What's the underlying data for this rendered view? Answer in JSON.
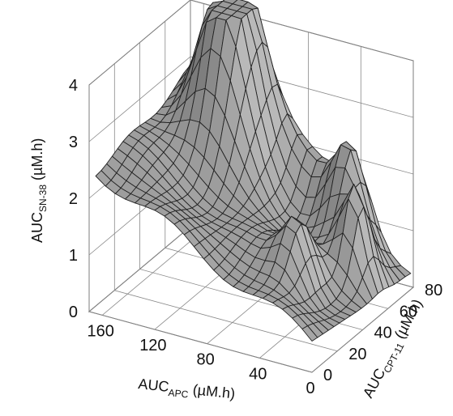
{
  "chart_data": {
    "type": "surface",
    "x_axis": {
      "name": "AUC",
      "subscript": "APC",
      "unit": "(µM.h)",
      "ticks": [
        "0",
        "40",
        "80",
        "120",
        "160"
      ],
      "range": [
        0,
        170
      ]
    },
    "y_axis": {
      "name": "AUC",
      "subscript": "CPT-11",
      "unit": "(µM.h)",
      "ticks": [
        "0",
        "20",
        "40",
        "60",
        "80"
      ],
      "range": [
        0,
        80
      ]
    },
    "z_axis": {
      "name": "AUC",
      "subscript": "SN-38",
      "unit": "(µM.h)",
      "ticks": [
        "0",
        "1",
        "2",
        "3",
        "4"
      ],
      "range": [
        0,
        4
      ]
    },
    "grid": true,
    "surface_color": "#9a9a9a",
    "mesh_color": "#222222",
    "peaks": [
      {
        "x_apc": 125,
        "y_cpt11": 65,
        "z_sn38": 4.3
      },
      {
        "x_apc": 40,
        "y_cpt11": 70,
        "z_sn38": 2.6
      },
      {
        "x_apc": 20,
        "y_cpt11": 55,
        "z_sn38": 2.5
      },
      {
        "x_apc": 40,
        "y_cpt11": 30,
        "z_sn38": 2.2
      }
    ]
  }
}
